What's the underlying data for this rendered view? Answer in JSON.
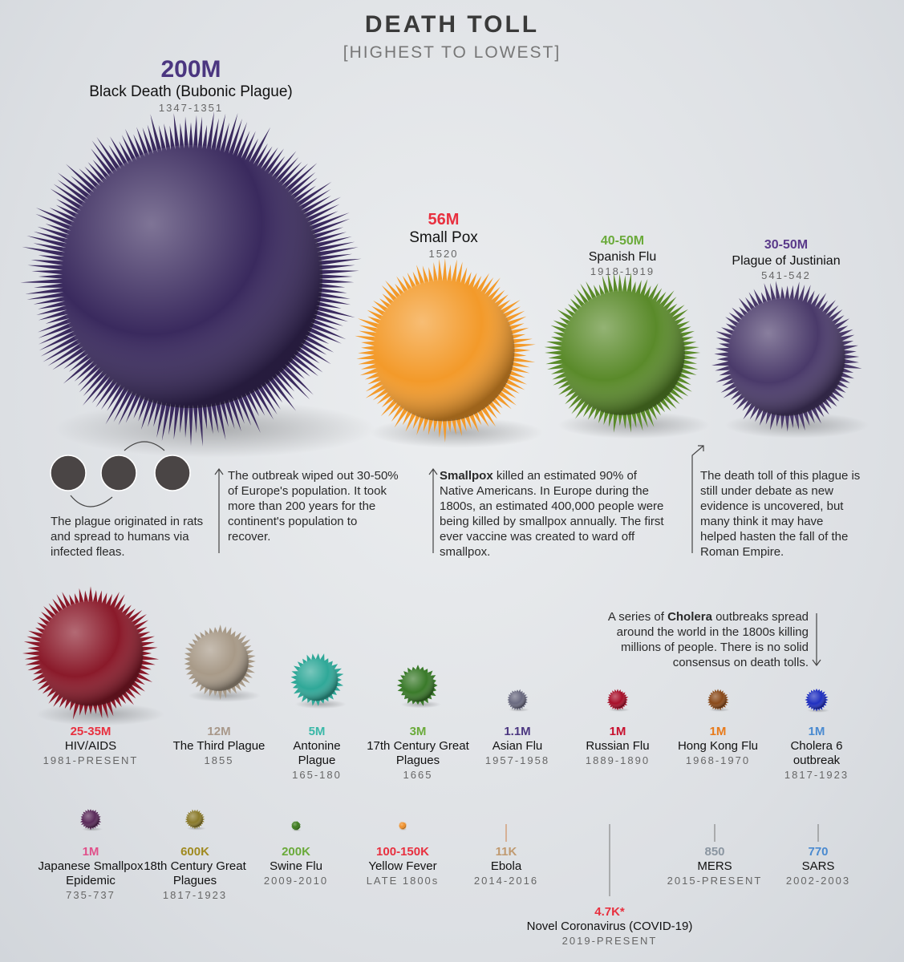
{
  "header": {
    "title": "DEATH TOLL",
    "subtitle": "[HIGHEST TO LOWEST]"
  },
  "items": [
    {
      "toll": "200M",
      "name": "Black Death (Bubonic Plague)",
      "years": "1347-1351",
      "color": "#3a2a5e",
      "label_color": "#4b3680"
    },
    {
      "toll": "56M",
      "name": "Small Pox",
      "years": "1520",
      "color": "#f39a2a",
      "label_color": "#e8303f"
    },
    {
      "toll": "40-50M",
      "name": "Spanish Flu",
      "years": "1918-1919",
      "color": "#5a8a2a",
      "label_color": "#6aaa3a"
    },
    {
      "toll": "30-50M",
      "name": "Plague of Justinian",
      "years": "541-542",
      "color": "#4a3a6a",
      "label_color": "#5a3a8a"
    },
    {
      "toll": "25-35M",
      "name": "HIV/AIDS",
      "years": "1981-PRESENT",
      "color": "#8a1a2a",
      "label_color": "#e8303f"
    },
    {
      "toll": "12M",
      "name": "The Third Plague",
      "years": "1855",
      "color": "#a89a88",
      "label_color": "#a8988a"
    },
    {
      "toll": "5M",
      "name": "Antonine Plague",
      "years": "165-180",
      "color": "#2fa898",
      "label_color": "#3ab8a8"
    },
    {
      "toll": "3M",
      "name": "17th Century Great Plagues",
      "years": "1665",
      "color": "#3a7a2a",
      "label_color": "#6aaa3a"
    },
    {
      "toll": "1.1M",
      "name": "Asian Flu",
      "years": "1957-1958",
      "color": "#6a6a80",
      "label_color": "#4b3680"
    },
    {
      "toll": "1M",
      "name": "Russian Flu",
      "years": "1889-1890",
      "color": "#a8102a",
      "label_color": "#c8102e"
    },
    {
      "toll": "1M",
      "name": "Hong Kong Flu",
      "years": "1968-1970",
      "color": "#8a4a1a",
      "label_color": "#e87a1a"
    },
    {
      "toll": "1M",
      "name": "Cholera 6 outbreak",
      "years": "1817-1923",
      "color": "#2030c0",
      "label_color": "#4a8ad0"
    },
    {
      "toll": "1M",
      "name": "Japanese Smallpox Epidemic",
      "years": "735-737",
      "color": "#5a2a5a",
      "label_color": "#e0508a"
    },
    {
      "toll": "600K",
      "name": "18th Century Great Plagues",
      "years": "1817-1923",
      "color": "#8a7a2a",
      "label_color": "#a08a20"
    },
    {
      "toll": "200K",
      "name": "Swine Flu",
      "years": "2009-2010",
      "color": "#3a7a1a",
      "label_color": "#6aaa3a"
    },
    {
      "toll": "100-150K",
      "name": "Yellow Fever",
      "years": "LATE 1800s",
      "color": "#f0902a",
      "label_color": "#e8303f"
    },
    {
      "toll": "11K",
      "name": "Ebola",
      "years": "2014-2016",
      "color": "#d09060",
      "label_color": "#c09a70"
    },
    {
      "toll": "4.7K*",
      "name": "Novel Coronavirus (COVID-19)",
      "years": "2019-PRESENT",
      "color": "#e8303f",
      "label_color": "#e8303f"
    },
    {
      "toll": "850",
      "name": "MERS",
      "years": "2015-PRESENT",
      "color": "#8a95a0",
      "label_color": "#8a95a0"
    },
    {
      "toll": "770",
      "name": "SARS",
      "years": "2002-2003",
      "color": "#4a8ad0",
      "label_color": "#4a8ad0"
    }
  ],
  "notes": [
    {
      "text": "The plague originated in rats and spread to humans via infected fleas."
    },
    {
      "text": "The outbreak wiped out 30-50% of Europe's population. It took more than 200 years for the continent's population to recover."
    },
    {
      "bold": "Smallpox",
      "text": "killed an estimated 90% of Native Americans. In Europe during the 1800s, an estimated 400,000 people were being killed by smallpox annually. The first ever vaccine was created to ward off smallpox."
    },
    {
      "text": "The death toll of this plague is still under debate as new evidence is uncovered, but many think it may have helped hasten the fall of the Roman Empire."
    },
    {
      "lead": "A series of",
      "bold": "Cholera",
      "text": "outbreaks spread around the world in the 1800s killing millions of people. There is no solid consensus on death tolls."
    }
  ]
}
